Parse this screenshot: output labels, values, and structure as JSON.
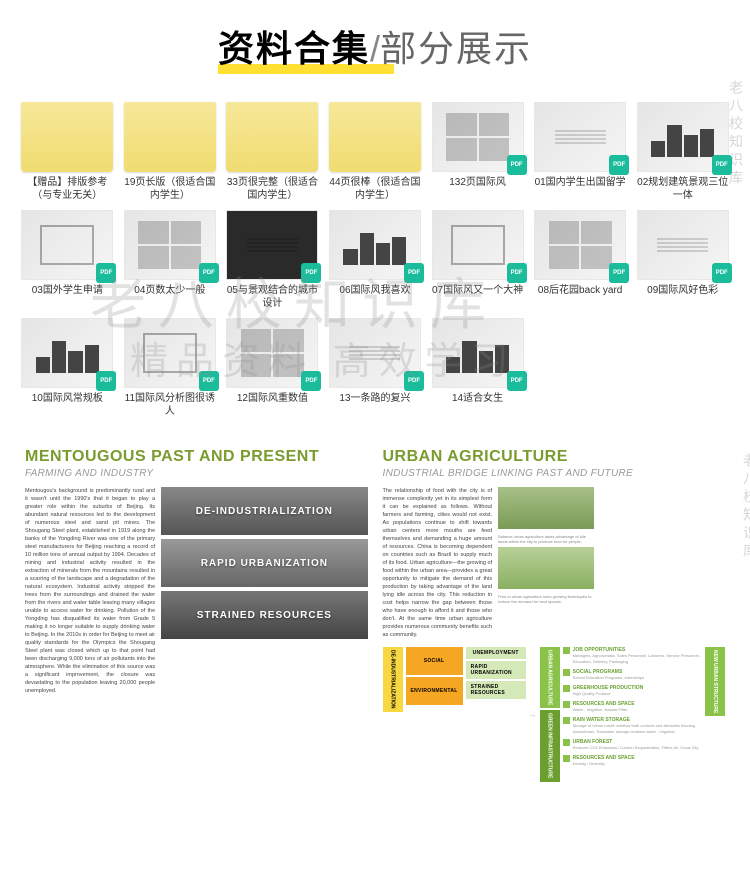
{
  "header": {
    "bold": "资料合集",
    "slash": "/",
    "light": "部分展示"
  },
  "watermark": {
    "main": "老八校知识库",
    "sub": "精品资料 高效学习",
    "side": "老八校知识库"
  },
  "files": [
    {
      "label": "【赠品】排版参考（与专业无关）",
      "type": "folder",
      "pdf": false
    },
    {
      "label": "19页长版（很适合国内学生）",
      "type": "folder",
      "pdf": false
    },
    {
      "label": "33页很完整（很适合国内学生）",
      "type": "folder",
      "pdf": false
    },
    {
      "label": "44页很棒（很适合国内学生）",
      "type": "folder",
      "pdf": false
    },
    {
      "label": "132页国际风",
      "type": "cover",
      "pdf": true
    },
    {
      "label": "01国内学生出国留学",
      "type": "cover",
      "pdf": true
    },
    {
      "label": "02规划建筑景观三位一体",
      "type": "cover",
      "pdf": true
    },
    {
      "label": "03国外学生申请",
      "type": "cover",
      "pdf": true
    },
    {
      "label": "04页数太少一般",
      "type": "cover",
      "pdf": true
    },
    {
      "label": "05与景观结合的城市设计",
      "type": "dark",
      "pdf": true
    },
    {
      "label": "06国际风我喜欢",
      "type": "cover",
      "pdf": true
    },
    {
      "label": "07国际风又一个大神",
      "type": "cover",
      "pdf": true
    },
    {
      "label": "08后花园back yard",
      "type": "cover",
      "pdf": true
    },
    {
      "label": "09国际风好色彩",
      "type": "cover",
      "pdf": true
    },
    {
      "label": "10国际风常规板",
      "type": "cover",
      "pdf": true
    },
    {
      "label": "11国际风分析图很诱人",
      "type": "cover",
      "pdf": true
    },
    {
      "label": "12国际风重数值",
      "type": "cover",
      "pdf": true
    },
    {
      "label": "13一条路的复兴",
      "type": "cover",
      "pdf": true
    },
    {
      "label": "14适合女生",
      "type": "cover",
      "pdf": true
    }
  ],
  "preview": {
    "left": {
      "title": "MENTOUGOUS PAST AND PRESENT",
      "subtitle": "FARMING AND INDUSTRY",
      "text": "Mentougou's background is predominantly rural and it wasn't until the 1990's that it began to play a greater role within the suburbs of Beijing. Its abundant natural resources led to the development of numerous steel and sand pit mines. The Shougang Steel plant, established in 1919 along the banks of the Yongding River was one of the primary steel manufacturers for Beijing reaching a record of 10 million tons of annual output by 1994. Decades of mining and industrial activity resulted in the extraction of minerals from the mountains resulted in a scarring of the landscape and a degradation of the natural ecosystem. Industrial activity stripped the trees from the surroundings and drained the water from the rivers and water table leaving many villages unable to access water for drinking. Pollution of the Yongding has disqualified its water from Grade 5 making it no longer suitable to supply drinking water to Beijing. In the 2010s in order for Beijing to meet air quality standards for the Olympics the Shougang Steel plant was closed which up to that point had been discharging 9,000 tons of air pollutants into the atmosphere. While the elimination of this source was a significant improvement, the closure was devastating to the population leaving 20,000 people unemployed.",
      "bands": [
        "DE-INDUSTRIALIZATION",
        "RAPID URBANIZATION",
        "STRAINED RESOURCES"
      ]
    },
    "right": {
      "title": "URBAN AGRICULTURE",
      "subtitle": "INDUSTRIAL BRIDGE LINKING PAST AND FUTURE",
      "text": "The relationship of food with the city is of immense complexity yet in its simplest form it can be explained as follows. Without farmers and farming, cities would not exist. As populations continue to shift towards urban centers more mouths are feed themselves and demanding a huge amount of resources. China is becoming dependent on countries such as Brazil to supply much of its food. Urban agriculture—the growing of food within the urban area—provides a great opportunity to mitigate the demand of this production by taking advantage of the land lying idle across the city. This reduction in cost helps narrow the gap between those who have enough to afford it and those who don't. At the same time urban agriculture provides numerous community benefits such as community.",
      "captions": [
        "Balance urban agriculture takes advantage of idle lands within the city to produce food for people.",
        "Free-in urban agriculture uses growing techniques to reduce the demand for land spaces."
      ],
      "cols": {
        "deind": "DE-INDUSTRIALIZATION",
        "social": "SOCIAL",
        "env": "ENVIRONMENTAL",
        "urbag": "URBAN AGRICULTURE",
        "green": "GREEN INFRASTRUCTURE",
        "newstr": "NEW URBAN STRUCTURE"
      },
      "blocks": {
        "unemp": "UNEMPLOYMENT",
        "rapid": "RAPID URBANIZATION",
        "strained": "STRAINED RESOURCES"
      },
      "items": [
        {
          "t": "JOB OPPORTUNITIES",
          "s": "Managers, Agronomists, Sales Personnel, Laborers, Service Personnel, Educators, Delivery, Packaging"
        },
        {
          "t": "SOCIAL PROGRAMS",
          "s": "School Education Programs, Internships"
        },
        {
          "t": "GREENHOUSE PRODUCTION",
          "s": "High Quality Produce"
        },
        {
          "t": "RESOURCES AND SPACE",
          "s": "Water - Irrigation, Natural Filter"
        },
        {
          "t": "RAIN WATER STORAGE",
          "s": "Storage of Urban runoff overflow both controls and alleviates flooding downstream, Rainwater storage reclaims water - irrigation"
        },
        {
          "t": "URBAN FOREST",
          "s": "Reduces CO2 Emissions / Carbon Sequestration, Filters Air, Cools City"
        },
        {
          "t": "RESOURCES AND SPACE",
          "s": "Density / Diversity"
        }
      ]
    }
  }
}
